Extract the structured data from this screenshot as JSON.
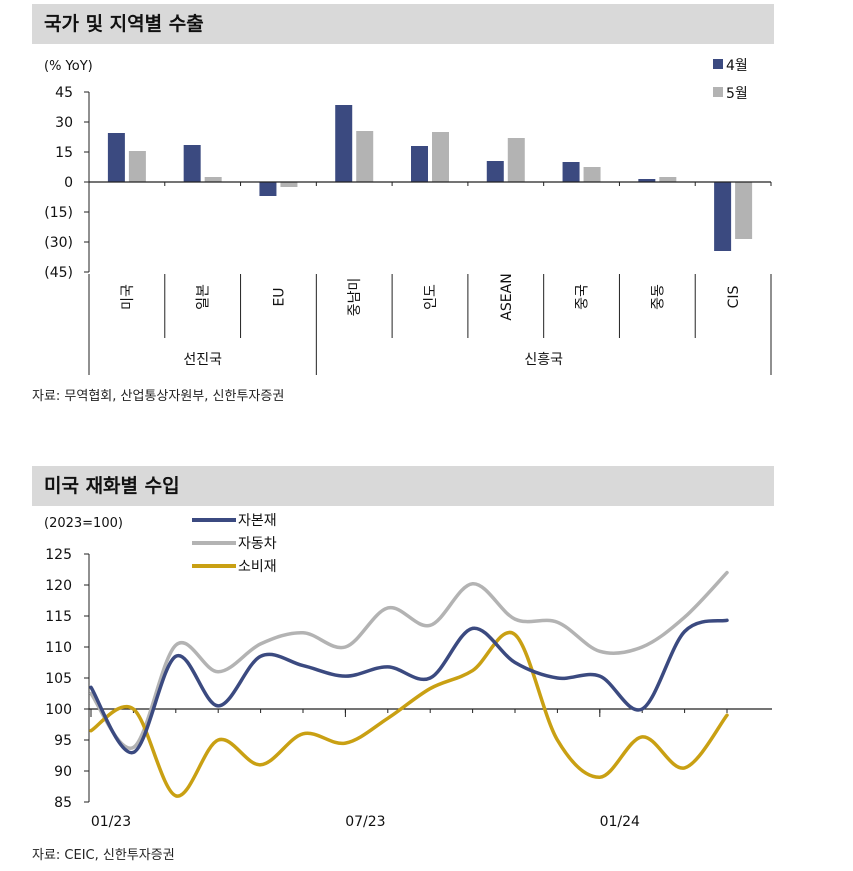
{
  "chart1": {
    "title": "국가 및 지역별 수출",
    "unit": "(% YoY)",
    "source": "자료: 무역협회, 산업통상자원부, 신한투자증권",
    "chart_data": {
      "type": "bar",
      "title": "국가 및 지역별 수출",
      "ylabel": "(% YoY)",
      "ylim": [
        -45,
        45
      ],
      "yticks": [
        "45",
        "30",
        "15",
        "0",
        "(15)",
        "(30)",
        "(45)"
      ],
      "categories": [
        "미국",
        "일본",
        "EU",
        "중남미",
        "인도",
        "ASEAN",
        "중국",
        "중동",
        "CIS"
      ],
      "groups": [
        {
          "label": "선진국",
          "count": 3
        },
        {
          "label": "신흥국",
          "count": 6
        }
      ],
      "series": [
        {
          "name": "4월",
          "color": "#3b4a80",
          "values": [
            24.5,
            18.5,
            -7,
            38.5,
            18,
            10.5,
            10,
            1.5,
            -34.5
          ]
        },
        {
          "name": "5월",
          "color": "#b3b3b3",
          "values": [
            15.5,
            2.5,
            -2.5,
            25.5,
            25,
            22,
            7.5,
            2.5,
            -28.5
          ]
        }
      ],
      "legend_position": "top-right",
      "grid": false
    }
  },
  "chart2": {
    "title": "미국 재화별 수입",
    "unit": "(2023=100)",
    "source": "자료: CEIC, 신한투자증권",
    "chart_data": {
      "type": "line",
      "title": "미국 재화별 수입",
      "ylabel": "(2023=100)",
      "ylim": [
        85,
        125
      ],
      "yticks": [
        125,
        120,
        115,
        110,
        105,
        100,
        95,
        90,
        85
      ],
      "x": [
        "2023-01",
        "2023-02",
        "2023-03",
        "2023-04",
        "2023-05",
        "2023-06",
        "2023-07",
        "2023-08",
        "2023-09",
        "2023-10",
        "2023-11",
        "2023-12",
        "2024-01",
        "2024-02",
        "2024-03",
        "2024-04"
      ],
      "xtick_labels": [
        {
          "label": "01/23",
          "x": "2023-01"
        },
        {
          "label": "07/23",
          "x": "2023-07"
        },
        {
          "label": "01/24",
          "x": "2024-01"
        }
      ],
      "series": [
        {
          "name": "자본재",
          "color": "#3b4a80",
          "values": [
            103.5,
            93,
            108.5,
            100.5,
            108.5,
            107,
            105.3,
            106.8,
            105,
            113,
            107.5,
            105,
            105.3,
            100,
            112.5,
            114.3
          ]
        },
        {
          "name": "자동차",
          "color": "#b3b3b3",
          "values": [
            102.5,
            93.8,
            110.3,
            106,
            110.5,
            112.3,
            110,
            116.3,
            113.5,
            120.2,
            114.5,
            114,
            109.3,
            110,
            114.8,
            122
          ]
        },
        {
          "name": "소비재",
          "color": "#c9a013",
          "values": [
            96.5,
            100,
            86,
            95,
            91,
            96,
            94.5,
            98.5,
            103.3,
            106.2,
            112,
            95,
            89,
            95.5,
            90.5,
            99
          ]
        }
      ],
      "legend_position": "top-left",
      "grid": false
    }
  }
}
